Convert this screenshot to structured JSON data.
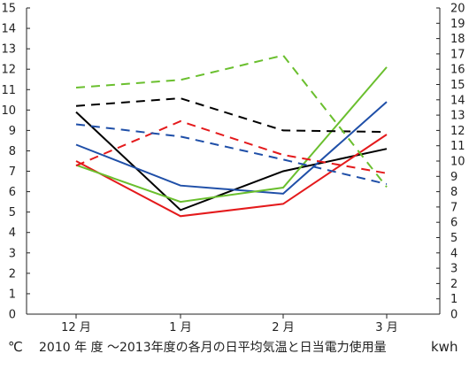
{
  "chart_data": {
    "type": "line",
    "title": "2010 年 度 ～2013年度の各月の日平均気温と日当電力使用量",
    "left_axis_unit": "℃",
    "right_axis_unit": "kwh",
    "categories": [
      "12 月",
      "1 月",
      "2 月",
      "3 月"
    ],
    "y_left": {
      "min": 0,
      "max": 15,
      "ticks": [
        0,
        1,
        2,
        3,
        4,
        5,
        6,
        7,
        8,
        9,
        10,
        11,
        12,
        13,
        14,
        15
      ]
    },
    "y_right": {
      "min": 0,
      "max": 20,
      "ticks": [
        0,
        1,
        2,
        3,
        4,
        5,
        6,
        7,
        8,
        9,
        10,
        11,
        12,
        13,
        14,
        15,
        16,
        17,
        18,
        19,
        20
      ]
    },
    "grid": false,
    "series": [
      {
        "axis": "left",
        "color": "#000000",
        "dashed": false,
        "values": [
          9.9,
          5.1,
          7.0,
          8.1
        ]
      },
      {
        "axis": "left",
        "color": "#e41a1c",
        "dashed": false,
        "values": [
          7.5,
          4.8,
          5.4,
          8.8
        ]
      },
      {
        "axis": "left",
        "color": "#1f4fa8",
        "dashed": false,
        "values": [
          8.3,
          6.3,
          5.9,
          10.4
        ]
      },
      {
        "axis": "left",
        "color": "#6abf2e",
        "dashed": false,
        "values": [
          7.3,
          5.5,
          6.2,
          12.1
        ]
      },
      {
        "axis": "right",
        "color": "#000000",
        "dashed": true,
        "values": [
          13.6,
          14.1,
          12.0,
          11.9
        ]
      },
      {
        "axis": "right",
        "color": "#e41a1c",
        "dashed": true,
        "values": [
          9.7,
          12.6,
          10.4,
          9.2
        ]
      },
      {
        "axis": "right",
        "color": "#1f4fa8",
        "dashed": true,
        "values": [
          12.4,
          11.6,
          10.1,
          8.5
        ]
      },
      {
        "axis": "right",
        "color": "#6abf2e",
        "dashed": true,
        "values": [
          14.8,
          15.3,
          16.9,
          8.3
        ]
      }
    ]
  }
}
